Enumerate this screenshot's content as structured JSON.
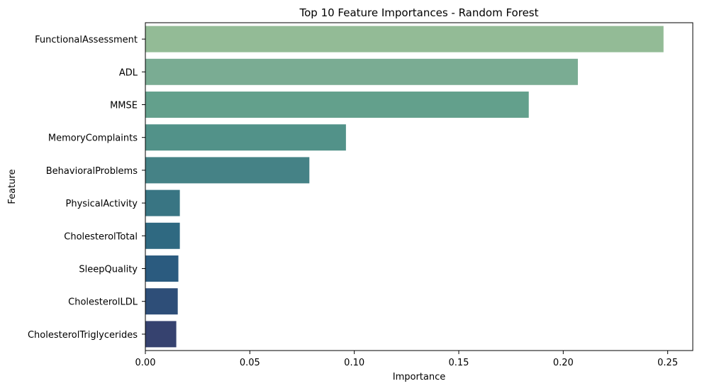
{
  "chart_data": {
    "type": "bar",
    "orientation": "horizontal",
    "title": "Top 10 Feature Importances - Random Forest",
    "xlabel": "Importance",
    "ylabel": "Feature",
    "categories": [
      "FunctionalAssessment",
      "ADL",
      "MMSE",
      "MemoryComplaints",
      "BehavioralProblems",
      "PhysicalActivity",
      "CholesterolTotal",
      "SleepQuality",
      "CholesterolLDL",
      "CholesterolTriglycerides"
    ],
    "values": [
      0.248,
      0.207,
      0.1835,
      0.096,
      0.0785,
      0.0165,
      0.0165,
      0.0158,
      0.0155,
      0.0148
    ],
    "colors": [
      "#93bb96",
      "#7aac93",
      "#63a08c",
      "#529289",
      "#458286",
      "#397583",
      "#2f6981",
      "#2b5b7f",
      "#2e4e78",
      "#36426f"
    ],
    "xlim": [
      0,
      0.262
    ],
    "xticks": [
      {
        "value": 0,
        "label": "0.00"
      },
      {
        "value": 0.05,
        "label": "0.05"
      },
      {
        "value": 0.1,
        "label": "0.10"
      },
      {
        "value": 0.15,
        "label": "0.15"
      },
      {
        "value": 0.2,
        "label": "0.20"
      },
      {
        "value": 0.25,
        "label": "0.25"
      }
    ],
    "grid": false,
    "legend": "none"
  }
}
